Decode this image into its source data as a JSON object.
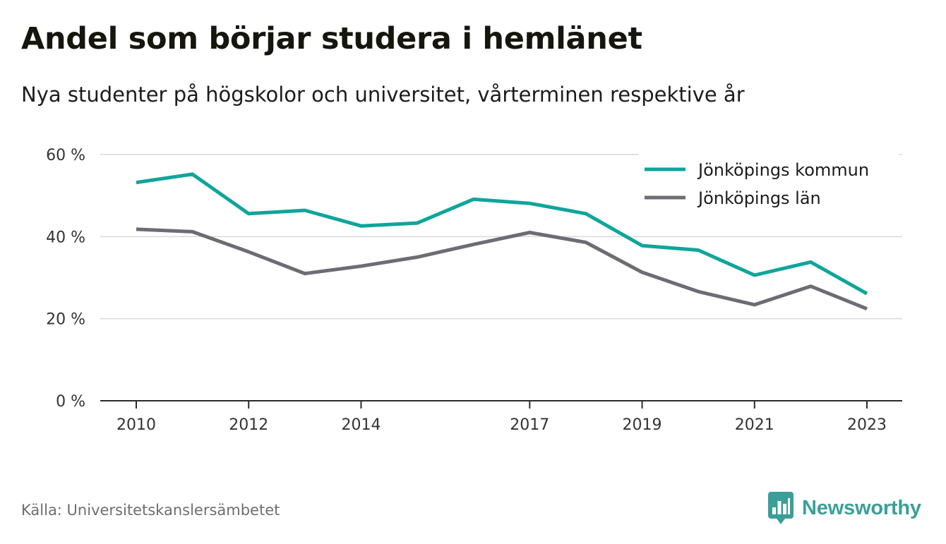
{
  "title": "Andel som börjar studera i hemlänet",
  "subtitle": "Nya studenter på högskolor och universitet, vårterminen respektive år",
  "source": "Källa: Universitetskanslersämbetet",
  "brand": {
    "name": "Newsworthy",
    "icon": "newsworthy-logo-icon",
    "color": "#3a9f98"
  },
  "chart_data": {
    "type": "line",
    "x": [
      2010,
      2011,
      2012,
      2013,
      2014,
      2015,
      2016,
      2017,
      2018,
      2019,
      2020,
      2021,
      2022,
      2023
    ],
    "x_tick_values": [
      2010,
      2012,
      2014,
      2017,
      2019,
      2021,
      2023
    ],
    "x_tick_labels": [
      "2010",
      "2012",
      "2014",
      "2017",
      "2019",
      "2021",
      "2023"
    ],
    "ylim": [
      0,
      60
    ],
    "y_tick_values": [
      0,
      20,
      40,
      60
    ],
    "y_tick_labels": [
      "0 %",
      "20 %",
      "40 %",
      "60 %"
    ],
    "grid": true,
    "legend_position": "top-right",
    "series": [
      {
        "name": "Jönköpings kommun",
        "color": "#0ea59a",
        "values": [
          53.2,
          55.2,
          45.6,
          46.4,
          42.6,
          43.3,
          49.1,
          48.1,
          45.6,
          37.8,
          36.7,
          30.6,
          33.8,
          26.1
        ]
      },
      {
        "name": "Jönköpings län",
        "color": "#6d6c74",
        "values": [
          41.8,
          41.2,
          36.3,
          31.0,
          32.8,
          35.0,
          38.1,
          41.0,
          38.6,
          31.3,
          26.6,
          23.4,
          27.9,
          22.4
        ]
      }
    ]
  }
}
